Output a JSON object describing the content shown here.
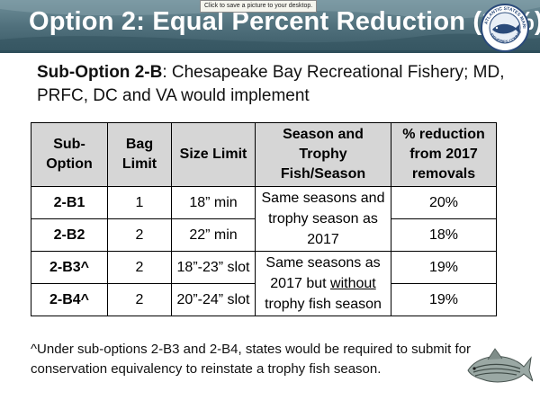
{
  "tooltip": "Click to save a picture to your desktop.",
  "title": "Option 2: Equal Percent Reduction (18%)",
  "logo_text": "ATLANTIC STATES MARINE FISHERIES COMMISSION",
  "subtitle": {
    "bold": "Sub-Option 2-B",
    "rest": ": Chesapeake Bay Recreational Fishery; MD, PRFC, DC and VA would implement"
  },
  "table": {
    "headers": [
      "Sub-Option",
      "Bag Limit",
      "Size Limit",
      "Season and Trophy Fish/Season",
      "% reduction from 2017 removals"
    ],
    "rows": [
      {
        "option": "2-B1",
        "bag": "1",
        "size": "18” min",
        "reduction": "20%"
      },
      {
        "option": "2-B2",
        "bag": "2",
        "size": "22” min",
        "reduction": "18%"
      },
      {
        "option": "2-B3^",
        "bag": "2",
        "size": "18”-23” slot",
        "reduction": "19%"
      },
      {
        "option": "2-B4^",
        "bag": "2",
        "size": "20”-24” slot",
        "reduction": "19%"
      }
    ],
    "season_a": "Same seasons and trophy season as 2017",
    "season_b_before": "Same seasons as 2017 but ",
    "season_b_underlined": "without",
    "season_b_after": " trophy fish season"
  },
  "footnote": "^Under sub-options 2-B3 and 2-B4, states would be required to submit for conservation equivalency to reinstate a trophy fish season.",
  "colors": {
    "banner": "#4f6f7b",
    "header_fill": "#d6d6d6",
    "border": "#000000"
  }
}
